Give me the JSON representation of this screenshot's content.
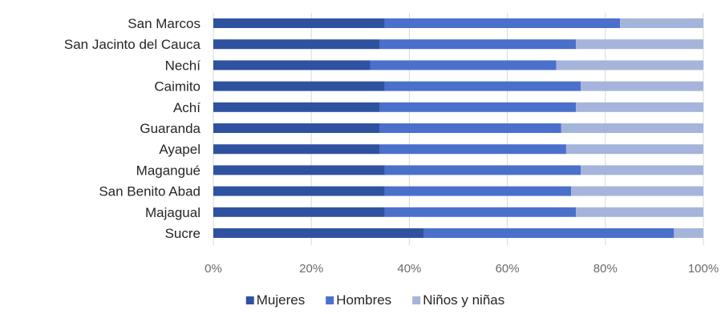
{
  "chart_data": {
    "type": "bar",
    "orientation": "horizontal",
    "stacked": "percent",
    "title": "",
    "xlabel": "",
    "ylabel": "",
    "xlim": [
      0,
      100
    ],
    "grid": "vertical",
    "legend_position": "bottom",
    "categories": [
      "San Marcos",
      "San Jacinto del Cauca",
      "Nechí",
      "Caimito",
      "Achí",
      "Guaranda",
      "Ayapel",
      "Magangué",
      "San Benito Abad",
      "Majagual",
      "Sucre"
    ],
    "x_tick_labels": [
      "0%",
      "20%",
      "40%",
      "60%",
      "80%",
      "100%"
    ],
    "series": [
      {
        "name": "Mujeres",
        "color": "#2f52a0",
        "values": [
          35,
          34,
          32,
          35,
          34,
          34,
          34,
          35,
          35,
          35,
          43
        ]
      },
      {
        "name": "Hombres",
        "color": "#4a70cc",
        "values": [
          48,
          40,
          38,
          40,
          40,
          37,
          38,
          40,
          38,
          39,
          51
        ]
      },
      {
        "name": "Niños y niñas",
        "color": "#a5b4db",
        "values": [
          17,
          26,
          30,
          25,
          26,
          29,
          28,
          25,
          27,
          26,
          6
        ]
      }
    ]
  }
}
